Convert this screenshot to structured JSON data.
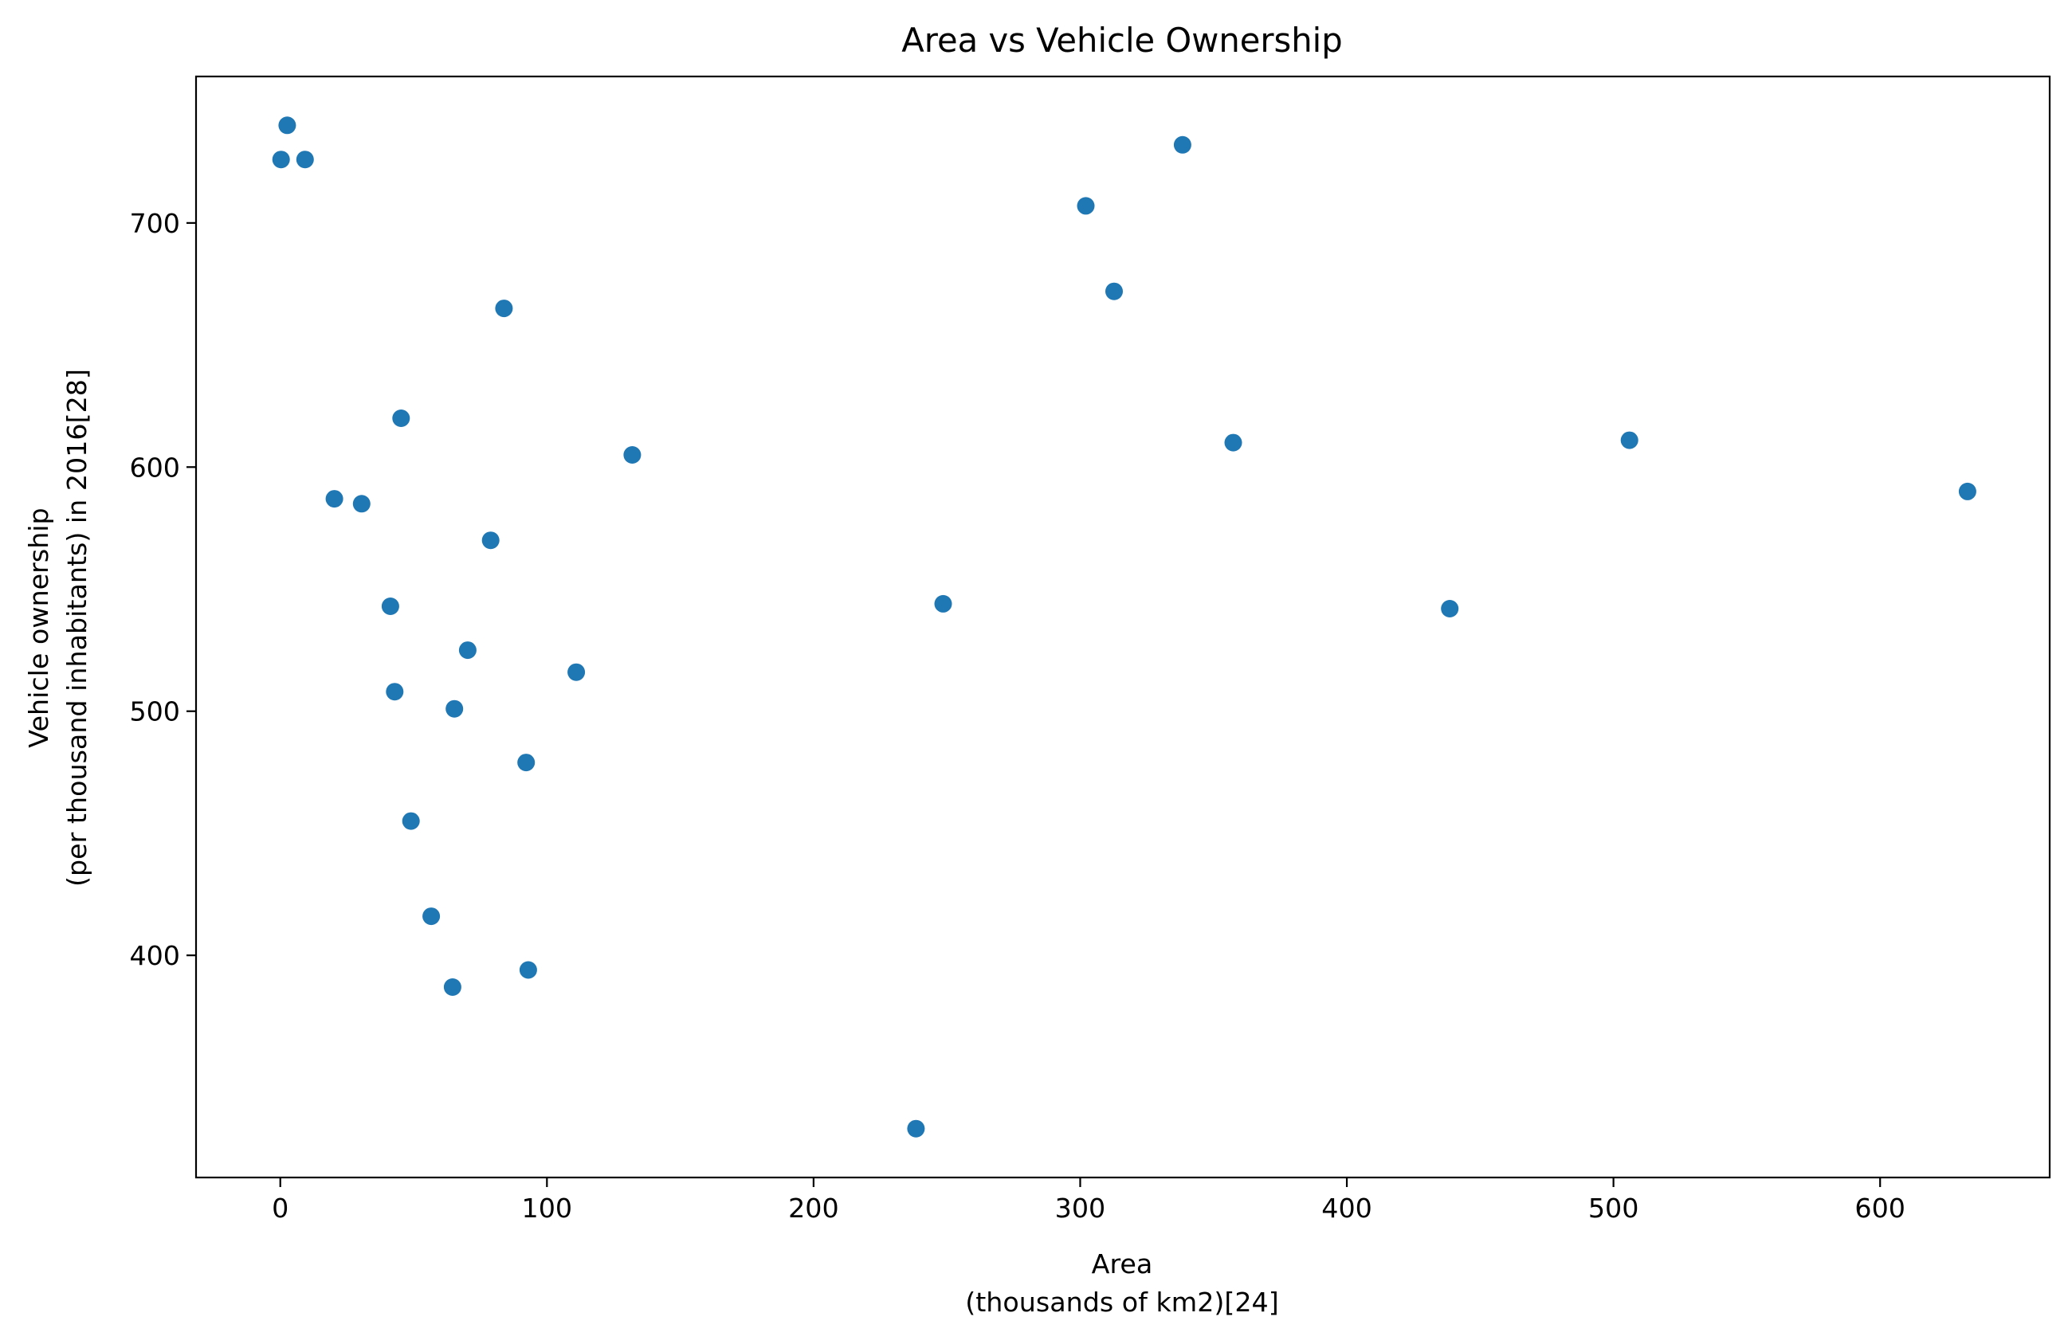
{
  "chart_data": {
    "type": "scatter",
    "title": "Area vs Vehicle Ownership",
    "xlabel": [
      "Area",
      "(thousands of km2)[24]"
    ],
    "ylabel": [
      "Vehicle ownership",
      "(per thousand inhabitants) in 2016[28]"
    ],
    "xlim": [
      -31.6,
      663.6
    ],
    "ylim": [
      309,
      760
    ],
    "xticks": [
      0,
      100,
      200,
      300,
      400,
      500,
      600
    ],
    "yticks": [
      400,
      500,
      600,
      700
    ],
    "grid": false,
    "marker_color": "#1f77b4",
    "points": [
      {
        "x": 0.3,
        "y": 726
      },
      {
        "x": 2.6,
        "y": 740
      },
      {
        "x": 9.3,
        "y": 726
      },
      {
        "x": 20.3,
        "y": 587
      },
      {
        "x": 30.5,
        "y": 585
      },
      {
        "x": 41.3,
        "y": 543
      },
      {
        "x": 42.9,
        "y": 508
      },
      {
        "x": 45.3,
        "y": 620
      },
      {
        "x": 49.0,
        "y": 455
      },
      {
        "x": 56.6,
        "y": 416
      },
      {
        "x": 64.6,
        "y": 387
      },
      {
        "x": 65.3,
        "y": 501
      },
      {
        "x": 70.3,
        "y": 525
      },
      {
        "x": 78.9,
        "y": 570
      },
      {
        "x": 83.9,
        "y": 665
      },
      {
        "x": 92.2,
        "y": 479
      },
      {
        "x": 93.0,
        "y": 394
      },
      {
        "x": 111.0,
        "y": 516
      },
      {
        "x": 132.0,
        "y": 605
      },
      {
        "x": 238.4,
        "y": 329
      },
      {
        "x": 248.6,
        "y": 544
      },
      {
        "x": 302.1,
        "y": 707
      },
      {
        "x": 312.7,
        "y": 672
      },
      {
        "x": 338.4,
        "y": 732
      },
      {
        "x": 357.4,
        "y": 610
      },
      {
        "x": 438.6,
        "y": 542
      },
      {
        "x": 506.0,
        "y": 611
      },
      {
        "x": 632.8,
        "y": 590
      }
    ]
  }
}
